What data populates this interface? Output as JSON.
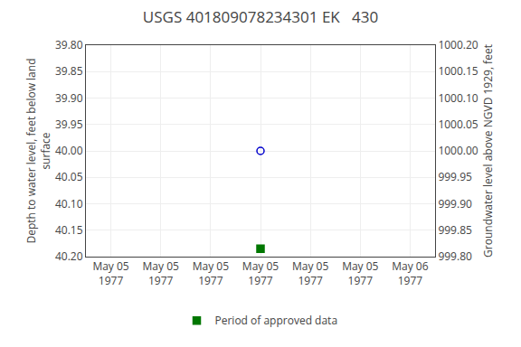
{
  "chart_data": {
    "type": "scatter",
    "title": "USGS 401809078234301 EK   430",
    "y_label": "Depth to water level, feet below land\nsurface",
    "y2_label": "Groundwater level above NGVD 1929, feet",
    "categories": [
      "May 05\n1977",
      "May 05\n1977",
      "May 05\n1977",
      "May 05\n1977",
      "May 05\n1977",
      "May 05\n1977",
      "May 06\n1977"
    ],
    "series": [
      {
        "color": "#0000cc",
        "marker": "circle-open",
        "values": [
          null,
          null,
          null,
          40.0,
          null,
          null,
          null
        ]
      },
      {
        "name": "Period of approved data",
        "color": "#007700",
        "marker": "square",
        "values": [
          null,
          null,
          null,
          40.185,
          null,
          null,
          null
        ]
      }
    ],
    "ylim": [
      40.2,
      39.8
    ],
    "yticks": [
      {
        "value": 39.8,
        "label": "39.80"
      },
      {
        "value": 39.85,
        "label": "39.85"
      },
      {
        "value": 39.9,
        "label": "39.90"
      },
      {
        "value": 39.95,
        "label": "39.95"
      },
      {
        "value": 40.0,
        "label": "40.00"
      },
      {
        "value": 40.05,
        "label": "40.05"
      },
      {
        "value": 40.1,
        "label": "40.10"
      },
      {
        "value": 40.15,
        "label": "40.15"
      },
      {
        "value": 40.2,
        "label": "40.20"
      }
    ],
    "y2lim": [
      999.8,
      1000.2
    ],
    "y2ticks": [
      {
        "value": 1000.2,
        "label": "1000.20"
      },
      {
        "value": 1000.15,
        "label": "1000.15"
      },
      {
        "value": 1000.1,
        "label": "1000.10"
      },
      {
        "value": 1000.05,
        "label": "1000.05"
      },
      {
        "value": 1000.0,
        "label": "1000.00"
      },
      {
        "value": 999.95,
        "label": "999.95"
      },
      {
        "value": 999.9,
        "label": "999.90"
      },
      {
        "value": 999.85,
        "label": "999.85"
      },
      {
        "value": 999.8,
        "label": "999.80"
      }
    ],
    "grid": true,
    "legend": "bottom"
  }
}
